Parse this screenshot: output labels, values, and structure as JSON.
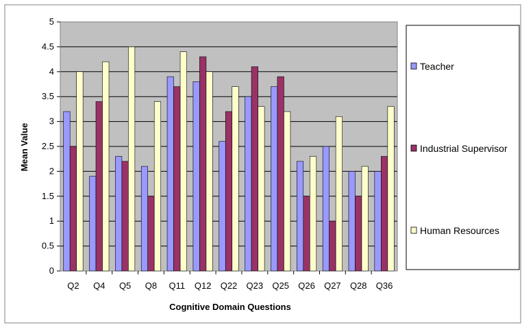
{
  "chart_data": {
    "type": "bar",
    "xlabel": "Cognitive Domain Questions",
    "ylabel": "Mean Value",
    "ylim": [
      0,
      5
    ],
    "yticks": [
      "0",
      "0.5",
      "1",
      "1.5",
      "2",
      "2.5",
      "3",
      "3.5",
      "4",
      "4.5",
      "5"
    ],
    "grid": true,
    "legend_position": "right",
    "categories": [
      "Q2",
      "Q4",
      "Q5",
      "Q8",
      "Q11",
      "Q12",
      "Q22",
      "Q23",
      "Q25",
      "Q26",
      "Q27",
      "Q28",
      "Q36"
    ],
    "series": [
      {
        "name": "Teacher",
        "color": "#9999ff",
        "values": [
          3.2,
          1.9,
          2.3,
          2.1,
          3.9,
          3.8,
          2.6,
          3.5,
          3.7,
          2.2,
          2.5,
          2.0,
          2.0
        ]
      },
      {
        "name": "Industrial Supervisor",
        "color": "#993366",
        "values": [
          2.5,
          3.4,
          2.2,
          1.5,
          3.7,
          4.3,
          3.2,
          4.1,
          3.9,
          1.5,
          1.0,
          1.5,
          2.3
        ]
      },
      {
        "name": "Human Resources",
        "color": "#ffffcc",
        "values": [
          4.0,
          4.2,
          4.5,
          3.4,
          4.4,
          4.0,
          3.7,
          3.3,
          3.2,
          2.3,
          3.1,
          2.1,
          3.3
        ]
      }
    ],
    "plot_background": "#c0c0c0"
  }
}
